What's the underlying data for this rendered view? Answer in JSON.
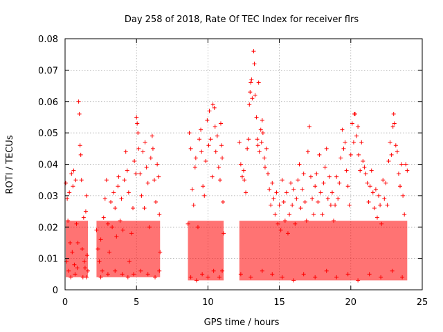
{
  "chart_data": {
    "type": "scatter",
    "title": "Day 258 of 2018, Rate Of TEC Index for receiver flrs",
    "xlabel": "GPS time / hours",
    "ylabel": "ROTI / TECUs",
    "xlim": [
      0,
      25
    ],
    "ylim": [
      0,
      0.08
    ],
    "x_ticks": [
      0,
      5,
      10,
      15,
      20,
      25
    ],
    "y_ticks": [
      0,
      0.01,
      0.02,
      0.03,
      0.04,
      0.05,
      0.06,
      0.07,
      0.08
    ],
    "x_tick_labels": [
      "0",
      "5",
      "10",
      "15",
      "20",
      "25"
    ],
    "y_tick_labels": [
      "0",
      "0.01",
      "0.02",
      "0.03",
      "0.04",
      "0.05",
      "0.06",
      "0.07",
      "0.08"
    ],
    "grid": true,
    "marker": "+",
    "marker_color": "#ff0000",
    "series": [
      {
        "name": "ROTI",
        "points": [
          [
            0.05,
            0.034
          ],
          [
            0.15,
            0.029
          ],
          [
            0.2,
            0.022
          ],
          [
            0.3,
            0.031
          ],
          [
            0.35,
            0.015
          ],
          [
            0.45,
            0.037
          ],
          [
            0.5,
            0.012
          ],
          [
            0.55,
            0.033
          ],
          [
            0.6,
            0.038
          ],
          [
            0.65,
            0.008
          ],
          [
            0.75,
            0.035
          ],
          [
            0.8,
            0.021
          ],
          [
            0.9,
            0.015
          ],
          [
            0.95,
            0.06
          ],
          [
            1.0,
            0.056
          ],
          [
            1.05,
            0.046
          ],
          [
            1.1,
            0.043
          ],
          [
            1.15,
            0.035
          ],
          [
            1.2,
            0.013
          ],
          [
            1.3,
            0.023
          ],
          [
            1.4,
            0.007
          ],
          [
            1.45,
            0.025
          ],
          [
            1.5,
            0.03
          ],
          [
            1.55,
            0.011
          ],
          [
            1.6,
            0.006
          ],
          [
            0.1,
            0.009
          ],
          [
            0.25,
            0.006
          ],
          [
            0.4,
            0.004
          ],
          [
            0.7,
            0.005
          ],
          [
            0.85,
            0.007
          ],
          [
            1.25,
            0.004
          ],
          [
            1.35,
            0.009
          ],
          [
            1.5,
            0.004
          ],
          [
            2.2,
            0.019
          ],
          [
            2.3,
            0.013
          ],
          [
            2.4,
            0.009
          ],
          [
            2.5,
            0.016
          ],
          [
            2.6,
            0.006
          ],
          [
            2.7,
            0.023
          ],
          [
            2.8,
            0.029
          ],
          [
            2.9,
            0.035
          ],
          [
            3.0,
            0.021
          ],
          [
            3.1,
            0.012
          ],
          [
            3.2,
            0.028
          ],
          [
            3.3,
            0.02
          ],
          [
            3.4,
            0.031
          ],
          [
            3.5,
            0.026
          ],
          [
            3.6,
            0.017
          ],
          [
            3.7,
            0.033
          ],
          [
            3.75,
            0.036
          ],
          [
            3.85,
            0.022
          ],
          [
            3.95,
            0.029
          ],
          [
            4.05,
            0.019
          ],
          [
            4.15,
            0.035
          ],
          [
            4.25,
            0.044
          ],
          [
            4.35,
            0.038
          ],
          [
            4.45,
            0.031
          ],
          [
            4.5,
            0.009
          ],
          [
            2.5,
            0.004
          ],
          [
            3.0,
            0.005
          ],
          [
            3.5,
            0.006
          ],
          [
            4.0,
            0.005
          ],
          [
            4.4,
            0.004
          ],
          [
            4.65,
            0.018
          ],
          [
            4.75,
            0.026
          ],
          [
            4.85,
            0.041
          ],
          [
            4.95,
            0.037
          ],
          [
            5.0,
            0.055
          ],
          [
            5.05,
            0.053
          ],
          [
            5.1,
            0.05
          ],
          [
            5.15,
            0.045
          ],
          [
            5.25,
            0.037
          ],
          [
            5.35,
            0.03
          ],
          [
            5.45,
            0.044
          ],
          [
            5.55,
            0.026
          ],
          [
            5.6,
            0.047
          ],
          [
            5.7,
            0.039
          ],
          [
            5.8,
            0.034
          ],
          [
            5.9,
            0.02
          ],
          [
            6.0,
            0.042
          ],
          [
            6.1,
            0.049
          ],
          [
            6.15,
            0.045
          ],
          [
            6.25,
            0.035
          ],
          [
            6.35,
            0.028
          ],
          [
            6.45,
            0.04
          ],
          [
            6.55,
            0.036
          ],
          [
            6.6,
            0.024
          ],
          [
            6.65,
            0.012
          ],
          [
            4.8,
            0.005
          ],
          [
            5.3,
            0.006
          ],
          [
            5.8,
            0.005
          ],
          [
            6.3,
            0.004
          ],
          [
            6.6,
            0.006
          ],
          [
            8.6,
            0.021
          ],
          [
            8.7,
            0.05
          ],
          [
            8.8,
            0.045
          ],
          [
            8.9,
            0.032
          ],
          [
            9.0,
            0.027
          ],
          [
            9.1,
            0.039
          ],
          [
            9.15,
            0.042
          ],
          [
            9.3,
            0.02
          ],
          [
            9.4,
            0.048
          ],
          [
            9.5,
            0.051
          ],
          [
            9.55,
            0.044
          ],
          [
            9.65,
            0.033
          ],
          [
            9.75,
            0.03
          ],
          [
            9.85,
            0.041
          ],
          [
            9.95,
            0.054
          ],
          [
            10.05,
            0.046
          ],
          [
            10.1,
            0.057
          ],
          [
            10.2,
            0.048
          ],
          [
            10.3,
            0.036
          ],
          [
            10.35,
            0.059
          ],
          [
            10.45,
            0.058
          ],
          [
            10.5,
            0.052
          ],
          [
            10.55,
            0.044
          ],
          [
            10.65,
            0.049
          ],
          [
            10.75,
            0.039
          ],
          [
            10.85,
            0.035
          ],
          [
            10.9,
            0.053
          ],
          [
            10.95,
            0.046
          ],
          [
            11.0,
            0.042
          ],
          [
            11.05,
            0.028
          ],
          [
            11.1,
            0.018
          ],
          [
            8.8,
            0.004
          ],
          [
            9.2,
            0.003
          ],
          [
            9.6,
            0.005
          ],
          [
            10.0,
            0.004
          ],
          [
            10.4,
            0.006
          ],
          [
            10.8,
            0.004
          ],
          [
            11.0,
            0.006
          ],
          [
            12.2,
            0.047
          ],
          [
            12.3,
            0.04
          ],
          [
            12.4,
            0.036
          ],
          [
            12.5,
            0.038
          ],
          [
            12.55,
            0.035
          ],
          [
            12.65,
            0.031
          ],
          [
            12.75,
            0.045
          ],
          [
            12.85,
            0.048
          ],
          [
            12.9,
            0.059
          ],
          [
            12.95,
            0.063
          ],
          [
            13.0,
            0.066
          ],
          [
            13.05,
            0.067
          ],
          [
            13.1,
            0.061
          ],
          [
            13.2,
            0.076
          ],
          [
            13.25,
            0.072
          ],
          [
            13.3,
            0.062
          ],
          [
            13.4,
            0.055
          ],
          [
            13.45,
            0.048
          ],
          [
            13.5,
            0.046
          ],
          [
            13.55,
            0.066
          ],
          [
            13.6,
            0.044
          ],
          [
            13.7,
            0.051
          ],
          [
            13.75,
            0.047
          ],
          [
            13.8,
            0.054
          ],
          [
            13.85,
            0.05
          ],
          [
            13.95,
            0.042
          ],
          [
            14.0,
            0.039
          ],
          [
            14.1,
            0.045
          ],
          [
            14.2,
            0.037
          ],
          [
            14.3,
            0.032
          ],
          [
            14.4,
            0.027
          ],
          [
            14.5,
            0.034
          ],
          [
            14.6,
            0.029
          ],
          [
            14.7,
            0.024
          ],
          [
            14.8,
            0.031
          ],
          [
            14.9,
            0.021
          ],
          [
            15.0,
            0.027
          ],
          [
            15.1,
            0.019
          ],
          [
            15.2,
            0.035
          ],
          [
            15.3,
            0.028
          ],
          [
            15.4,
            0.022
          ],
          [
            15.5,
            0.031
          ],
          [
            15.6,
            0.018
          ],
          [
            15.7,
            0.024
          ],
          [
            15.8,
            0.034
          ],
          [
            15.9,
            0.027
          ],
          [
            16.0,
            0.032
          ],
          [
            16.1,
            0.021
          ],
          [
            16.2,
            0.029
          ],
          [
            16.3,
            0.035
          ],
          [
            16.4,
            0.04
          ],
          [
            16.5,
            0.026
          ],
          [
            16.6,
            0.032
          ],
          [
            16.7,
            0.037
          ],
          [
            16.8,
            0.028
          ],
          [
            16.9,
            0.022
          ],
          [
            17.0,
            0.044
          ],
          [
            17.1,
            0.052
          ],
          [
            17.2,
            0.036
          ],
          [
            17.3,
            0.029
          ],
          [
            17.4,
            0.024
          ],
          [
            17.5,
            0.033
          ],
          [
            17.6,
            0.037
          ],
          [
            17.7,
            0.028
          ],
          [
            17.8,
            0.043
          ],
          [
            17.9,
            0.031
          ],
          [
            18.0,
            0.024
          ],
          [
            18.1,
            0.034
          ],
          [
            18.2,
            0.039
          ],
          [
            18.3,
            0.045
          ],
          [
            18.4,
            0.029
          ],
          [
            18.5,
            0.036
          ],
          [
            18.6,
            0.027
          ],
          [
            18.7,
            0.031
          ],
          [
            18.8,
            0.022
          ],
          [
            18.9,
            0.027
          ],
          [
            19.0,
            0.036
          ],
          [
            19.1,
            0.029
          ],
          [
            19.2,
            0.034
          ],
          [
            19.3,
            0.042
          ],
          [
            19.4,
            0.051
          ],
          [
            19.5,
            0.045
          ],
          [
            19.6,
            0.047
          ],
          [
            19.7,
            0.038
          ],
          [
            19.8,
            0.033
          ],
          [
            19.9,
            0.027
          ],
          [
            20.0,
            0.043
          ],
          [
            20.1,
            0.053
          ],
          [
            20.2,
            0.047
          ],
          [
            20.25,
            0.056
          ],
          [
            20.3,
            0.056
          ],
          [
            20.4,
            0.049
          ],
          [
            20.5,
            0.052
          ],
          [
            20.55,
            0.043
          ],
          [
            20.65,
            0.038
          ],
          [
            20.75,
            0.047
          ],
          [
            20.85,
            0.041
          ],
          [
            20.95,
            0.039
          ],
          [
            21.05,
            0.037
          ],
          [
            21.15,
            0.034
          ],
          [
            21.25,
            0.028
          ],
          [
            21.35,
            0.033
          ],
          [
            21.45,
            0.038
          ],
          [
            21.55,
            0.031
          ],
          [
            21.65,
            0.026
          ],
          [
            21.75,
            0.032
          ],
          [
            21.85,
            0.023
          ],
          [
            21.95,
            0.03
          ],
          [
            22.05,
            0.027
          ],
          [
            22.15,
            0.021
          ],
          [
            22.25,
            0.035
          ],
          [
            22.35,
            0.029
          ],
          [
            22.45,
            0.034
          ],
          [
            22.55,
            0.027
          ],
          [
            22.65,
            0.041
          ],
          [
            22.75,
            0.047
          ],
          [
            22.85,
            0.043
          ],
          [
            22.95,
            0.052
          ],
          [
            23.0,
            0.056
          ],
          [
            23.05,
            0.053
          ],
          [
            23.15,
            0.046
          ],
          [
            23.25,
            0.044
          ],
          [
            23.35,
            0.037
          ],
          [
            23.45,
            0.033
          ],
          [
            23.55,
            0.04
          ],
          [
            23.65,
            0.03
          ],
          [
            23.75,
            0.024
          ],
          [
            23.85,
            0.04
          ],
          [
            23.95,
            0.038
          ],
          [
            12.3,
            0.005
          ],
          [
            13.0,
            0.004
          ],
          [
            13.8,
            0.006
          ],
          [
            14.5,
            0.005
          ],
          [
            15.2,
            0.004
          ],
          [
            16.0,
            0.003
          ],
          [
            16.7,
            0.005
          ],
          [
            17.5,
            0.004
          ],
          [
            18.3,
            0.006
          ],
          [
            19.0,
            0.004
          ],
          [
            19.8,
            0.005
          ],
          [
            20.5,
            0.003
          ],
          [
            21.3,
            0.005
          ],
          [
            22.1,
            0.004
          ],
          [
            22.9,
            0.006
          ],
          [
            23.6,
            0.004
          ]
        ]
      }
    ]
  }
}
